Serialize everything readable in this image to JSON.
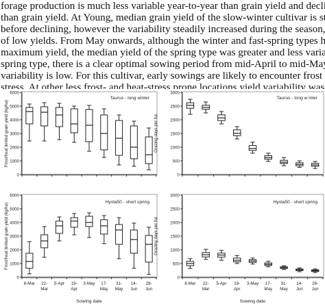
{
  "paragraph": {
    "lines": [
      "forage production is much less variable year-to-year than grain yield and declines more rapid",
      "than grain yield. At Young, median grain yield of the slow-winter cultivar is stable over the fi",
      "before declining, however the variability steadily increased during the season, with an  increa",
      "of low yields. From May onwards, although the winter and fast-spring types had similar grazi",
      "maximum yield, the median yield of the spring type was greater and less variable from year-t",
      "spring type, there is a clear optimal sowing period from mid-April to mid-May, where yield is",
      "variability is low. For this cultivar, early sowings are likely to encounter frost and late sowing",
      "stress. At other less frost- and heat-stress prone locations yield variability was much lower (L"
    ]
  },
  "chart_data": [
    {
      "id": "taurus-grain",
      "type": "box",
      "title": "Taurus - long winter",
      "ylabel": "Frost/heat limited grain yield (kg/ha)",
      "xlabel": "",
      "ylim": [
        0,
        6000
      ],
      "yticks": [
        "0",
        "1000",
        "2000",
        "3000",
        "4000",
        "5000",
        "6000"
      ],
      "categories": [
        [
          "8-Mar"
        ],
        [
          "22-",
          "Mar"
        ],
        [
          "5-Apr"
        ],
        [
          "19-",
          "Apr"
        ],
        [
          "3-May"
        ],
        [
          "17-",
          "May"
        ],
        [
          "31-",
          "May"
        ],
        [
          "14-",
          "Jun"
        ],
        [
          "28-",
          "Jun"
        ]
      ],
      "show_tick_labels": false,
      "boxes": [
        {
          "min": 2450,
          "q1": 3700,
          "median": 4600,
          "q3": 4900,
          "max": 5150
        },
        {
          "min": 2450,
          "q1": 3550,
          "median": 4550,
          "q3": 4950,
          "max": 5250
        },
        {
          "min": 2550,
          "q1": 3500,
          "median": 4350,
          "q3": 4900,
          "max": 5200
        },
        {
          "min": 2350,
          "q1": 3050,
          "median": 3700,
          "q3": 4800,
          "max": 5000
        },
        {
          "min": 1700,
          "q1": 2400,
          "median": 3600,
          "q3": 4750,
          "max": 5050
        },
        {
          "min": 1250,
          "q1": 1800,
          "median": 3000,
          "q3": 4350,
          "max": 4800
        },
        {
          "min": 700,
          "q1": 1400,
          "median": 2650,
          "q3": 3950,
          "max": 4350
        },
        {
          "min": 600,
          "q1": 1150,
          "median": 2000,
          "q3": 3550,
          "max": 3900
        },
        {
          "min": 350,
          "q1": 800,
          "median": 1450,
          "q3": 2750,
          "max": 3400
        }
      ]
    },
    {
      "id": "taurus-grazing",
      "type": "box",
      "title": "Taurus - long w inter",
      "ylabel": "Grazing days per ha",
      "xlabel": "",
      "ylim": [
        0,
        3000
      ],
      "yticks": [
        "0",
        "500",
        "1000",
        "1500",
        "2000",
        "2500",
        "3000"
      ],
      "categories": [
        [
          "8-Mar"
        ],
        [
          "22-",
          "Mar"
        ],
        [
          "5-Apr"
        ],
        [
          "19-",
          "Apr"
        ],
        [
          "3-May"
        ],
        [
          "17-",
          "May"
        ],
        [
          "31-",
          "May"
        ],
        [
          "14-",
          "Jun"
        ],
        [
          "28-",
          "Jun"
        ]
      ],
      "show_tick_labels": false,
      "boxes": [
        {
          "min": 2200,
          "q1": 2420,
          "median": 2530,
          "q3": 2620,
          "max": 2750
        },
        {
          "min": 2250,
          "q1": 2380,
          "median": 2450,
          "q3": 2530,
          "max": 2650
        },
        {
          "min": 1850,
          "q1": 1970,
          "median": 2070,
          "q3": 2180,
          "max": 2300
        },
        {
          "min": 1300,
          "q1": 1420,
          "median": 1510,
          "q3": 1630,
          "max": 1750
        },
        {
          "min": 780,
          "q1": 880,
          "median": 950,
          "q3": 1060,
          "max": 1180
        },
        {
          "min": 480,
          "q1": 560,
          "median": 620,
          "q3": 690,
          "max": 780
        },
        {
          "min": 320,
          "q1": 400,
          "median": 450,
          "q3": 520,
          "max": 620
        },
        {
          "min": 260,
          "q1": 320,
          "median": 370,
          "q3": 430,
          "max": 500
        },
        {
          "min": 220,
          "q1": 300,
          "median": 350,
          "q3": 410,
          "max": 480
        }
      ]
    },
    {
      "id": "hyola-grain",
      "type": "box",
      "title": "Hyola50 - short spring",
      "ylabel": "Frost/heat limited grain yield (kg/ha)",
      "xlabel": "Sowing date",
      "ylim": [
        0,
        6000
      ],
      "yticks": [
        "0",
        "1000",
        "2000",
        "3000",
        "4000",
        "5000",
        "6000"
      ],
      "categories": [
        [
          "8-Mar"
        ],
        [
          "22-",
          "Mar"
        ],
        [
          "5-Apr"
        ],
        [
          "19-",
          "Apr"
        ],
        [
          "3-May"
        ],
        [
          "17-",
          "May"
        ],
        [
          "31-",
          "May"
        ],
        [
          "14-",
          "Jun"
        ],
        [
          "28-",
          "Jun"
        ]
      ],
      "show_tick_labels": true,
      "boxes": [
        {
          "min": 250,
          "q1": 650,
          "median": 1150,
          "q3": 1750,
          "max": 2600
        },
        {
          "min": 1450,
          "q1": 2150,
          "median": 2650,
          "q3": 3100,
          "max": 3700
        },
        {
          "min": 2650,
          "q1": 3200,
          "median": 3750,
          "q3": 4100,
          "max": 4400
        },
        {
          "min": 3100,
          "q1": 3650,
          "median": 4100,
          "q3": 4350,
          "max": 4650
        },
        {
          "min": 2900,
          "q1": 3700,
          "median": 4000,
          "q3": 4450,
          "max": 4700
        },
        {
          "min": 2450,
          "q1": 3150,
          "median": 3750,
          "q3": 4200,
          "max": 4500
        },
        {
          "min": 1350,
          "q1": 2400,
          "median": 3450,
          "q3": 3850,
          "max": 4350
        },
        {
          "min": 650,
          "q1": 1750,
          "median": 2750,
          "q3": 3450,
          "max": 3950
        },
        {
          "min": 200,
          "q1": 1100,
          "median": 2400,
          "q3": 3050,
          "max": 3650
        }
      ]
    },
    {
      "id": "hyola-grazing",
      "type": "box",
      "title": "Hyola50 - short spring",
      "ylabel": "Grazing days per ha",
      "xlabel": "Sowing date",
      "ylim": [
        0,
        3000
      ],
      "yticks": [
        "0",
        "500",
        "1000",
        "1500",
        "2000",
        "2500",
        "3000"
      ],
      "categories": [
        [
          "8-Mar"
        ],
        [
          "22-",
          "Mar"
        ],
        [
          "5-Apr"
        ],
        [
          "19-",
          "Apr"
        ],
        [
          "3-May"
        ],
        [
          "17-",
          "May"
        ],
        [
          "31-",
          "May"
        ],
        [
          "14-",
          "Jun"
        ],
        [
          "28-",
          "Jun"
        ]
      ],
      "show_tick_labels": true,
      "boxes": [
        {
          "min": 320,
          "q1": 420,
          "median": 500,
          "q3": 580,
          "max": 680
        },
        {
          "min": 650,
          "q1": 740,
          "median": 820,
          "q3": 900,
          "max": 1020
        },
        {
          "min": 620,
          "q1": 730,
          "median": 810,
          "q3": 880,
          "max": 980
        },
        {
          "min": 500,
          "q1": 560,
          "median": 620,
          "q3": 700,
          "max": 790
        },
        {
          "min": 480,
          "q1": 540,
          "median": 590,
          "q3": 640,
          "max": 700
        },
        {
          "min": 380,
          "q1": 430,
          "median": 470,
          "q3": 520,
          "max": 580
        },
        {
          "min": 280,
          "q1": 320,
          "median": 350,
          "q3": 380,
          "max": 420
        },
        {
          "min": 200,
          "q1": 240,
          "median": 270,
          "q3": 300,
          "max": 340
        },
        {
          "min": 170,
          "q1": 210,
          "median": 240,
          "q3": 270,
          "max": 300
        }
      ]
    }
  ]
}
